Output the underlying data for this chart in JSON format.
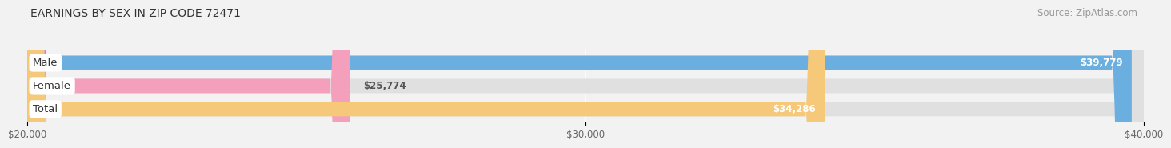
{
  "title": "EARNINGS BY SEX IN ZIP CODE 72471",
  "source": "Source: ZipAtlas.com",
  "categories": [
    "Male",
    "Female",
    "Total"
  ],
  "values": [
    39779,
    25774,
    34286
  ],
  "bar_colors": [
    "#6aafe0",
    "#f4a0bc",
    "#f5c87a"
  ],
  "value_label_colors": [
    "#ffffff",
    "#666666",
    "#ffffff"
  ],
  "value_labels": [
    "$39,779",
    "$25,774",
    "$34,286"
  ],
  "xlim": [
    20000,
    40000
  ],
  "xticks": [
    20000,
    30000,
    40000
  ],
  "xtick_labels": [
    "$20,000",
    "$30,000",
    "$40,000"
  ],
  "background_color": "#f2f2f2",
  "bar_track_color": "#e0e0e0",
  "title_fontsize": 10,
  "source_fontsize": 8.5,
  "bar_height": 0.62,
  "bar_label_fontsize": 8.5,
  "category_label_fontsize": 9.5,
  "tick_fontsize": 8.5
}
